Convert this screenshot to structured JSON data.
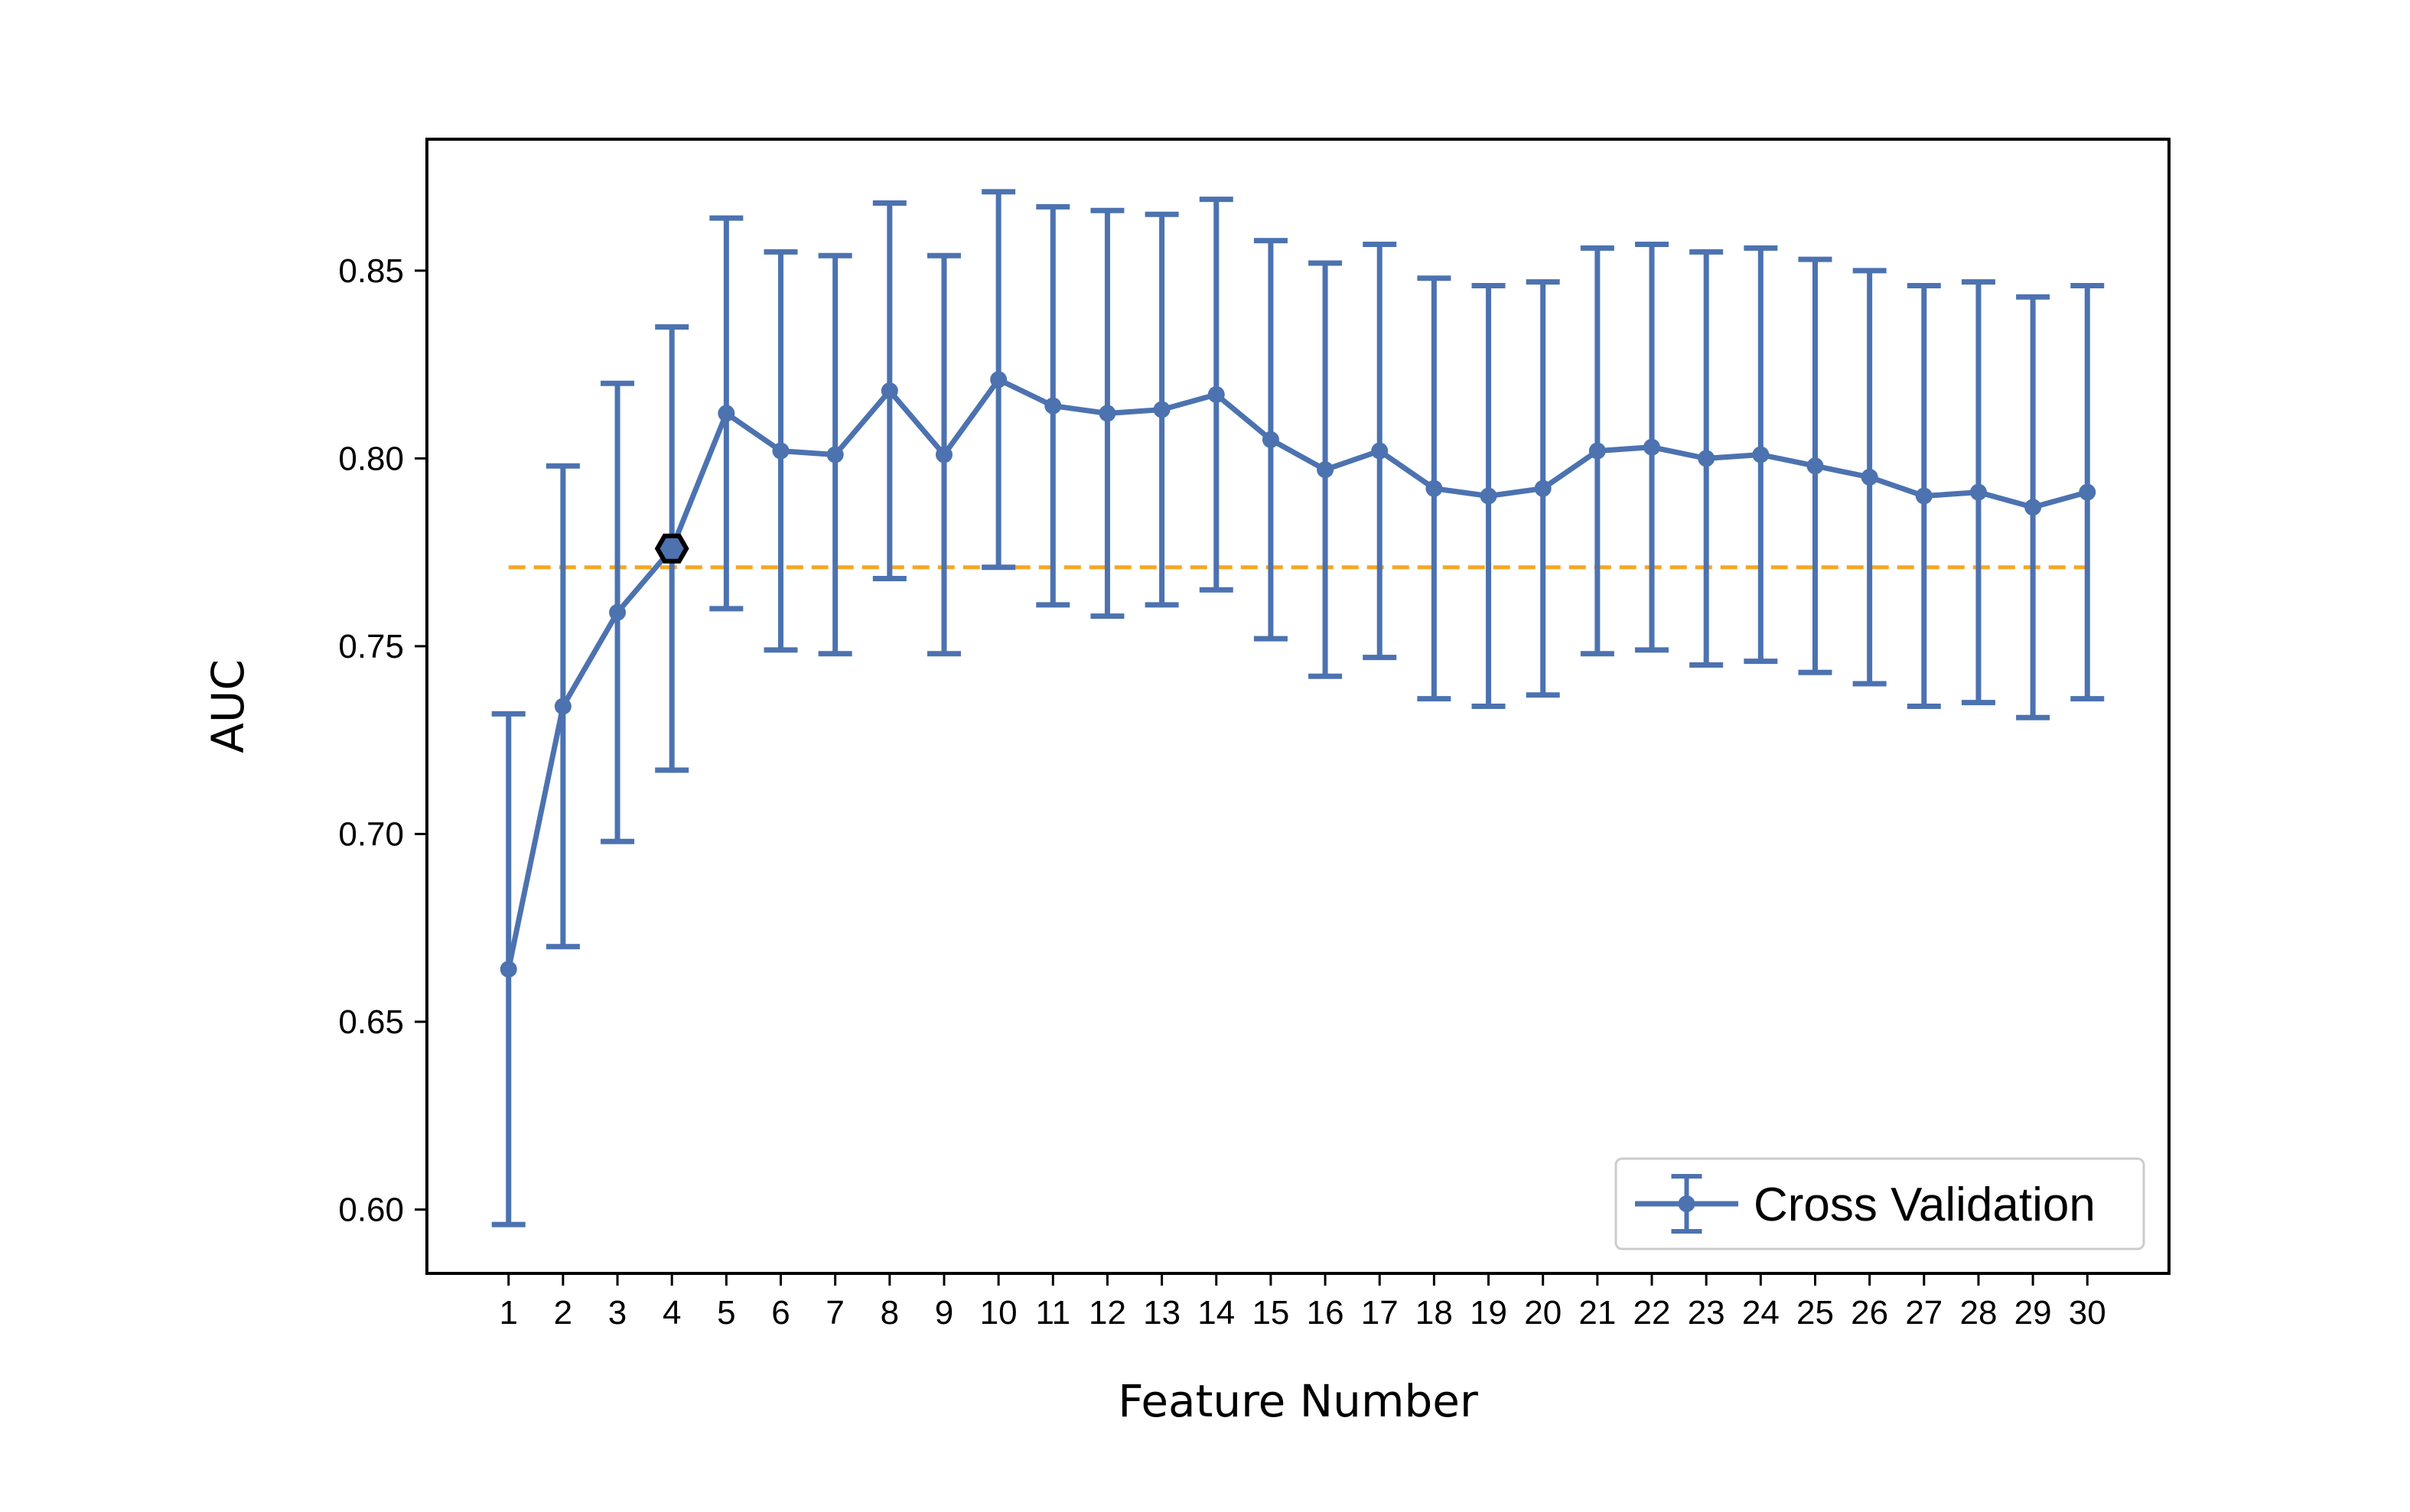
{
  "chart_data": {
    "type": "line",
    "title": "",
    "xlabel": "Feature Number",
    "ylabel": "AUC",
    "x": [
      1,
      2,
      3,
      4,
      5,
      6,
      7,
      8,
      9,
      10,
      11,
      12,
      13,
      14,
      15,
      16,
      17,
      18,
      19,
      20,
      21,
      22,
      23,
      24,
      25,
      26,
      27,
      28,
      29,
      30
    ],
    "x_tick_labels": [
      "1",
      "2",
      "3",
      "4",
      "5",
      "6",
      "7",
      "8",
      "9",
      "10",
      "11",
      "12",
      "13",
      "14",
      "15",
      "16",
      "17",
      "18",
      "19",
      "20",
      "21",
      "22",
      "23",
      "24",
      "25",
      "26",
      "27",
      "28",
      "29",
      "30"
    ],
    "y_ticks": [
      0.6,
      0.65,
      0.7,
      0.75,
      0.8,
      0.85
    ],
    "y_tick_labels": [
      "0.60",
      "0.65",
      "0.70",
      "0.75",
      "0.80",
      "0.85"
    ],
    "xlim": [
      -0.5,
      31.5
    ],
    "ylim": [
      0.583,
      0.885
    ],
    "grid": false,
    "legend_position": "lower-right",
    "series": [
      {
        "name": "Cross Validation",
        "color": "#4c72b0",
        "values": [
          0.664,
          0.734,
          0.759,
          0.776,
          0.812,
          0.802,
          0.801,
          0.818,
          0.801,
          0.821,
          0.814,
          0.812,
          0.813,
          0.817,
          0.805,
          0.797,
          0.802,
          0.792,
          0.79,
          0.792,
          0.802,
          0.803,
          0.8,
          0.801,
          0.798,
          0.795,
          0.79,
          0.791,
          0.787,
          0.791
        ],
        "error": [
          0.068,
          0.064,
          0.061,
          0.059,
          0.052,
          0.053,
          0.053,
          0.05,
          0.053,
          0.05,
          0.053,
          0.054,
          0.052,
          0.052,
          0.053,
          0.055,
          0.055,
          0.056,
          0.056,
          0.055,
          0.054,
          0.054,
          0.055,
          0.055,
          0.055,
          0.055,
          0.056,
          0.056,
          0.056,
          0.055
        ]
      }
    ],
    "reference_line": {
      "y": 0.771,
      "color": "#f5a623",
      "style": "dashed"
    },
    "highlight_point": {
      "x": 4,
      "y": 0.776,
      "color": "#000000",
      "marker": "hexagon"
    }
  }
}
